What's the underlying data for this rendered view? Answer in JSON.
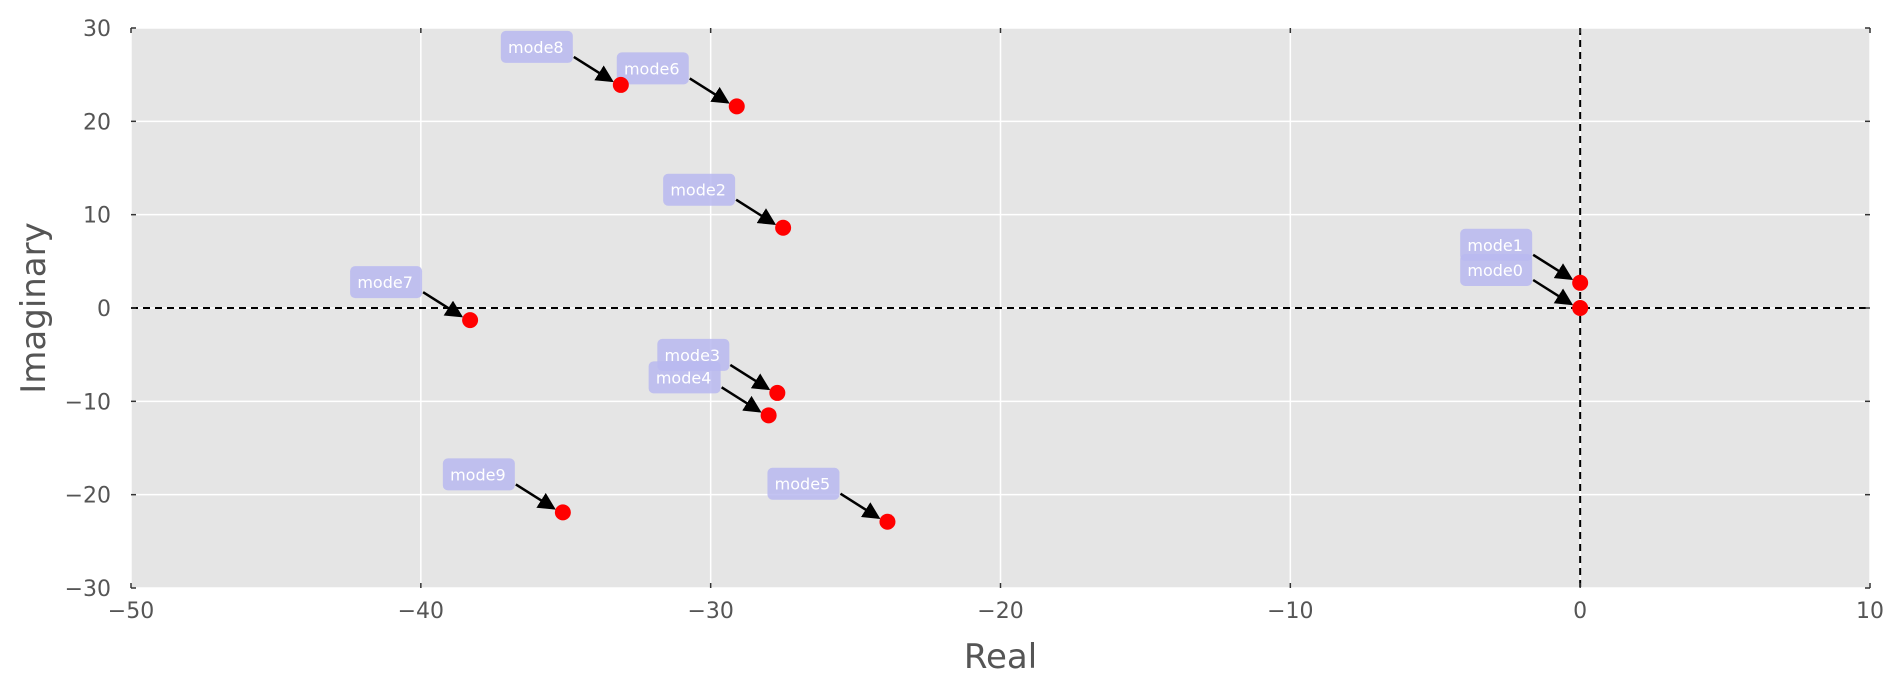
{
  "chart_data": {
    "type": "scatter",
    "xlabel": "Real",
    "ylabel": "Imaginary",
    "xlim": [
      -50,
      10
    ],
    "ylim": [
      -30,
      30
    ],
    "xticks": [
      -50,
      -40,
      -30,
      -20,
      -10,
      0,
      10
    ],
    "yticks": [
      -30,
      -20,
      -10,
      0,
      10,
      20,
      30
    ],
    "tick_labels_x": [
      "−50",
      "−40",
      "−30",
      "−20",
      "−10",
      "0",
      "10"
    ],
    "tick_labels_y": [
      "−30",
      "−20",
      "−10",
      "0",
      "10",
      "20",
      "30"
    ],
    "grid": true,
    "reference_lines": {
      "x": 0,
      "y": 0,
      "style": "dashed"
    },
    "point_color": "#ff0000",
    "annotation_box_color": "#b8b8f0",
    "background_color": "#e5e5e5",
    "points": [
      {
        "label": "mode0",
        "x": 0.0,
        "y": 0.0
      },
      {
        "label": "mode1",
        "x": 0.0,
        "y": 2.7
      },
      {
        "label": "mode2",
        "x": -27.5,
        "y": 8.6
      },
      {
        "label": "mode3",
        "x": -27.7,
        "y": -9.1
      },
      {
        "label": "mode4",
        "x": -28.0,
        "y": -11.5
      },
      {
        "label": "mode5",
        "x": -23.9,
        "y": -22.9
      },
      {
        "label": "mode6",
        "x": -29.1,
        "y": 21.6
      },
      {
        "label": "mode7",
        "x": -38.3,
        "y": -1.3
      },
      {
        "label": "mode8",
        "x": -33.1,
        "y": 23.9
      },
      {
        "label": "mode9",
        "x": -35.1,
        "y": -21.9
      }
    ]
  }
}
